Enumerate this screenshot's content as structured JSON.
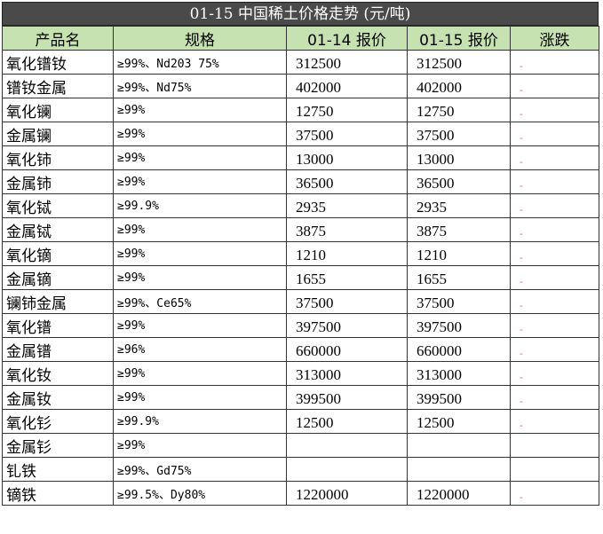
{
  "title": "01-15 中国稀土价格走势 (元/吨)",
  "headers": [
    "产品名",
    "规格",
    "01-14 报价",
    "01-15 报价",
    "涨跌"
  ],
  "rows": [
    {
      "name": "氧化镨钕",
      "spec": "≥99%、Nd203 75%",
      "p1": "312500",
      "p2": "312500",
      "chg": "-"
    },
    {
      "name": "镨钕金属",
      "spec": "≥99%、Nd75%",
      "p1": "402000",
      "p2": "402000",
      "chg": "-"
    },
    {
      "name": "氧化镧",
      "spec": "≥99%",
      "p1": "12750",
      "p2": "12750",
      "chg": "-"
    },
    {
      "name": "金属镧",
      "spec": "≥99%",
      "p1": "37500",
      "p2": "37500",
      "chg": "-"
    },
    {
      "name": "氧化铈",
      "spec": "≥99%",
      "p1": "13000",
      "p2": "13000",
      "chg": "-"
    },
    {
      "name": "金属铈",
      "spec": "≥99%",
      "p1": "36500",
      "p2": "36500",
      "chg": "-"
    },
    {
      "name": "氧化铽",
      "spec": "≥99.9%",
      "p1": "2935",
      "p2": "2935",
      "chg": "-"
    },
    {
      "name": "金属铽",
      "spec": "≥99%",
      "p1": "3875",
      "p2": "3875",
      "chg": "-"
    },
    {
      "name": "氧化镝",
      "spec": "≥99%",
      "p1": "1210",
      "p2": "1210",
      "chg": "-"
    },
    {
      "name": "金属镝",
      "spec": "≥99%",
      "p1": "1655",
      "p2": "1655",
      "chg": "-"
    },
    {
      "name": "镧铈金属",
      "spec": "≥99%、Ce65%",
      "p1": "37500",
      "p2": "37500",
      "chg": "-"
    },
    {
      "name": "氧化镨",
      "spec": "≥99%",
      "p1": "397500",
      "p2": "397500",
      "chg": "-"
    },
    {
      "name": "金属镨",
      "spec": "≥96%",
      "p1": "660000",
      "p2": "660000",
      "chg": "-"
    },
    {
      "name": "氧化钕",
      "spec": "≥99%",
      "p1": "313000",
      "p2": "313000",
      "chg": "-"
    },
    {
      "name": "金属钕",
      "spec": "≥99%",
      "p1": "399500",
      "p2": "399500",
      "chg": "-"
    },
    {
      "name": "氧化钐",
      "spec": "≥99.9%",
      "p1": "12500",
      "p2": "12500",
      "chg": "-"
    },
    {
      "name": "金属钐",
      "spec": "≥99%",
      "p1": "",
      "p2": "",
      "chg": ""
    },
    {
      "name": "钆铁",
      "spec": "≥99%、Gd75%",
      "p1": "",
      "p2": "",
      "chg": ""
    },
    {
      "name": "镝铁",
      "spec": "≥99.5%、Dy80%",
      "p1": "1220000",
      "p2": "1220000",
      "chg": "-"
    }
  ]
}
